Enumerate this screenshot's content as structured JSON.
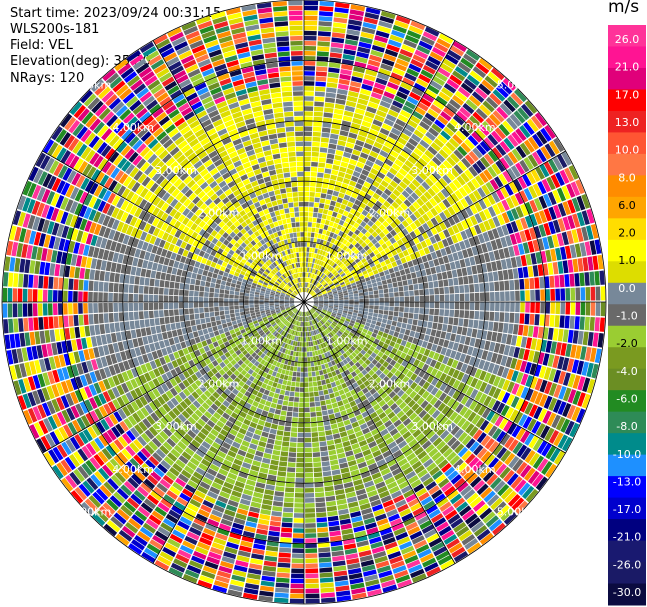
{
  "header": {
    "start_time": "Start time: 2023/09/24 00:31:15",
    "instrument": "WLS200s-181",
    "field": "Field: VEL",
    "elevation": "Elevation(deg): 35.30",
    "nrays": "NRays: 120"
  },
  "chart_data": {
    "type": "heatmap",
    "projection": "polar PPI",
    "field": "VEL",
    "units": "m/s",
    "elevation_deg": 35.3,
    "n_rays": 120,
    "range_rings_km": [
      1.0,
      2.0,
      3.0,
      4.0,
      5.0
    ],
    "range_ring_labels": [
      "1.00km",
      "2.00km",
      "3.00km",
      "4.00km",
      "5.00km"
    ],
    "max_range_km": 5.0,
    "grid": true,
    "pattern": {
      "inner_range_km": 3.6,
      "description_quadrants": {
        "north": "mostly 1.0 to 2.0 m/s (yellow)",
        "south": "mostly -1.0 to -4.0 m/s (green)",
        "east_west": "near 0 m/s (gray)",
        "beyond_inner_range": "noise spanning full scale"
      }
    },
    "colorbar": {
      "title": "m/s",
      "ticks": [
        "26.0",
        "21.0",
        "17.0",
        "13.0",
        "10.0",
        "8.0",
        "6.0",
        "2.0",
        "1.0",
        "0.0",
        "-1.0",
        "-2.0",
        "-4.0",
        "-6.0",
        "-8.0",
        "-10.0",
        "-13.0",
        "-17.0",
        "-21.0",
        "-26.0",
        "-30.0"
      ],
      "colors_top_to_bottom": [
        "#ff3399",
        "#ff1493",
        "#e0007a",
        "#ff0000",
        "#ee2222",
        "#ff5533",
        "#ff7744",
        "#ff8c00",
        "#ffa500",
        "#ffdd00",
        "#ffff00",
        "#dddd00",
        "#778899",
        "#696969",
        "#9acd32",
        "#7a9a20",
        "#6b8e23",
        "#228b22",
        "#2e8b57",
        "#008b8b",
        "#1e90ff",
        "#0000ff",
        "#0000cd",
        "#000080",
        "#191970",
        "#1a1a66",
        "#0b0b40"
      ]
    }
  }
}
